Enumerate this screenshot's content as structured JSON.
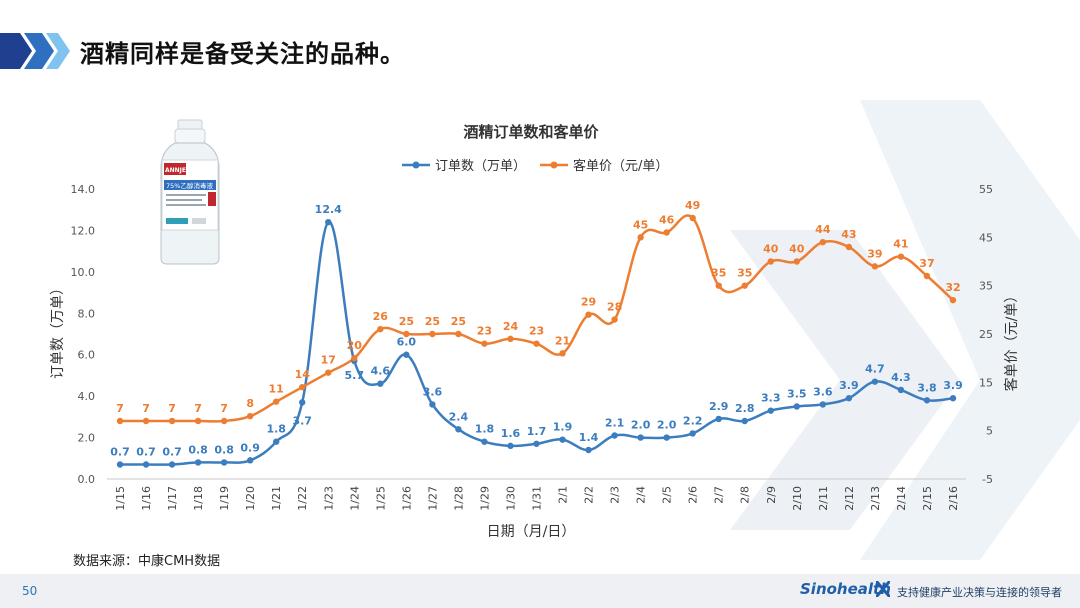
{
  "header": {
    "title": "酒精同样是备受关注的品种。"
  },
  "source_note": "数据来源：中康CMH数据",
  "footer": {
    "page_number": "50",
    "brand": "Sinohealth",
    "tagline": "支持健康产业决策与连接的领导者"
  },
  "product_image": {
    "brand_label": "ANNJET",
    "product_label": "75%乙醇消毒液"
  },
  "colors": {
    "orders": "#3b7dbf",
    "price": "#ed7d31",
    "accent_dark": "#1f3f8f",
    "accent_light": "#4aa3df"
  },
  "chart_data": {
    "type": "line",
    "title": "酒精订单数和客单价",
    "xlabel": "日期（月/日）",
    "ylabel_left": "订单数（万单）",
    "ylabel_right": "客单价（元/单）",
    "ylim_left": [
      0,
      14
    ],
    "yticks_left": [
      "0.0",
      "2.0",
      "4.0",
      "6.0",
      "8.0",
      "10.0",
      "12.0",
      "14.0"
    ],
    "ylim_right": [
      -5,
      55
    ],
    "yticks_right": [
      "-5",
      "5",
      "15",
      "25",
      "35",
      "45",
      "55"
    ],
    "legend_position": "top-center",
    "categories": [
      "1/15",
      "1/16",
      "1/17",
      "1/18",
      "1/19",
      "1/20",
      "1/21",
      "1/22",
      "1/23",
      "1/24",
      "1/25",
      "1/26",
      "1/27",
      "1/28",
      "1/29",
      "1/30",
      "1/31",
      "2/1",
      "2/2",
      "2/3",
      "2/4",
      "2/5",
      "2/6",
      "2/7",
      "2/8",
      "2/9",
      "2/10",
      "2/11",
      "2/12",
      "2/13",
      "2/14",
      "2/15",
      "2/16"
    ],
    "series": [
      {
        "name": "订单数（万单）",
        "axis": "left",
        "values": [
          0.7,
          0.7,
          0.7,
          0.8,
          0.8,
          0.9,
          1.8,
          3.7,
          12.4,
          5.7,
          4.6,
          6.0,
          3.6,
          2.4,
          1.8,
          1.6,
          1.7,
          1.9,
          1.4,
          2.1,
          2.0,
          2.0,
          2.2,
          2.9,
          2.8,
          3.3,
          3.5,
          3.6,
          3.9,
          4.7,
          4.3,
          3.8,
          3.9
        ],
        "labels": [
          "0.7",
          "0.7",
          "0.7",
          "0.8",
          "0.8",
          "0.9",
          "1.8",
          "3.7",
          "12.4",
          "5.7",
          "4.6",
          "6.0",
          "3.6",
          "2.4",
          "1.8",
          "1.6",
          "1.7",
          "1.9",
          "1.4",
          "2.1",
          "2.0",
          "2.0",
          "2.2",
          "2.9",
          "2.8",
          "3.3",
          "3.5",
          "3.6",
          "3.9",
          "4.7",
          "4.3",
          "3.8",
          "3.9"
        ]
      },
      {
        "name": "客单价（元/单）",
        "axis": "right",
        "values": [
          7,
          7,
          7,
          7,
          7,
          8,
          11,
          14,
          17,
          20,
          26,
          25,
          25,
          25,
          23,
          24,
          23,
          21,
          29,
          28,
          45,
          46,
          49,
          35,
          35,
          40,
          40,
          44,
          43,
          39,
          41,
          37,
          32
        ],
        "labels": [
          "7",
          "7",
          "7",
          "7",
          "7",
          "8",
          "11",
          "14",
          "17",
          "20",
          "26",
          "25",
          "25",
          "25",
          "23",
          "24",
          "23",
          "21",
          "29",
          "28",
          "45",
          "46",
          "49",
          "35",
          "35",
          "40",
          "40",
          "44",
          "43",
          "39",
          "41",
          "37",
          "32"
        ]
      }
    ]
  }
}
